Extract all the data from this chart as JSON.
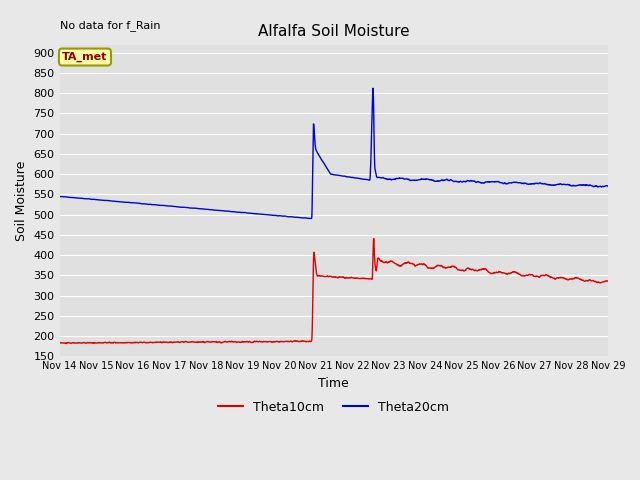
{
  "title": "Alfalfa Soil Moisture",
  "xlabel": "Time",
  "ylabel": "Soil Moisture",
  "note": "No data for f_Rain",
  "legend_label": "TA_met",
  "series_labels": [
    "Theta10cm",
    "Theta20cm"
  ],
  "series_colors": [
    "#dd0000",
    "#0000dd"
  ],
  "ylim": [
    150,
    920
  ],
  "yticks": [
    150,
    200,
    250,
    300,
    350,
    400,
    450,
    500,
    550,
    600,
    650,
    700,
    750,
    800,
    850,
    900
  ],
  "background_color": "#e8e8e8",
  "plot_bg_color": "#e0e0e0",
  "grid_color": "#ffffff",
  "start_day": 14,
  "end_day": 29
}
